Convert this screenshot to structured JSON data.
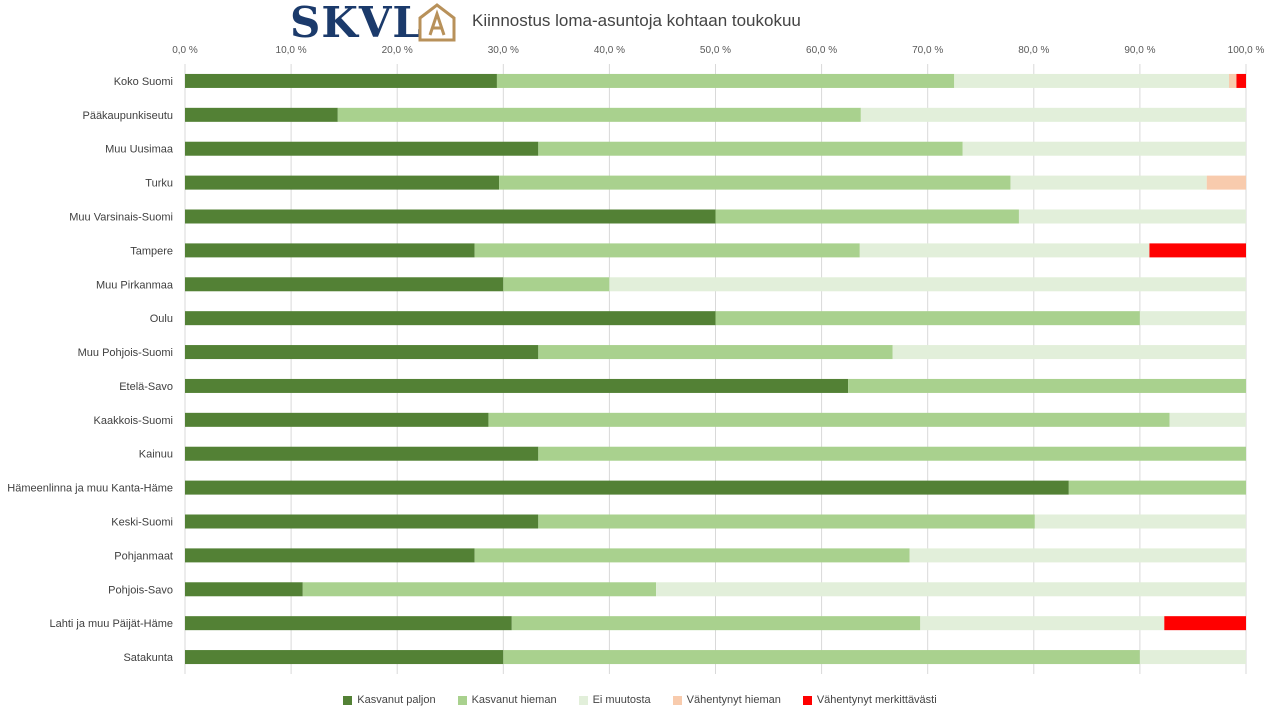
{
  "header": {
    "logo_text": "SKVL",
    "title": "Kiinnostus loma-asuntoja kohtaan toukokuu"
  },
  "colors": [
    "#538135",
    "#a9d18e",
    "#e2efda",
    "#f8cbad",
    "#ff0000"
  ],
  "chart_data": {
    "type": "bar",
    "orientation": "horizontal",
    "stacked": true,
    "title": "Kiinnostus loma-asuntoja kohtaan toukokuu",
    "xlim": [
      0,
      100
    ],
    "x_ticks": [
      "0,0 %",
      "10,0 %",
      "20,0 %",
      "30,0 %",
      "40,0 %",
      "50,0 %",
      "60,0 %",
      "70,0 %",
      "80,0 %",
      "90,0 %",
      "100,0 %"
    ],
    "x_axis_position": "top",
    "grid": "vertical",
    "legend_position": "bottom",
    "categories": [
      "Koko Suomi",
      "Pääkaupunkiseutu",
      "Muu Uusimaa",
      "Turku",
      "Muu Varsinais-Suomi",
      "Tampere",
      "Muu Pirkanmaa",
      "Oulu",
      "Muu Pohjois-Suomi",
      "Etelä-Savo",
      "Kaakkois-Suomi",
      "Kainuu",
      "Hämeenlinna ja muu Kanta-Häme",
      "Keski-Suomi",
      "Pohjanmaat",
      "Pohjois-Savo",
      "Lahti ja muu Päijät-Häme",
      "Satakunta"
    ],
    "series": [
      {
        "name": "Kasvanut paljon",
        "values": [
          29.4,
          14.4,
          33.3,
          29.6,
          50.0,
          27.3,
          30.0,
          50.0,
          33.3,
          62.5,
          28.6,
          33.3,
          83.3,
          33.3,
          27.3,
          11.1,
          30.8,
          30.0
        ]
      },
      {
        "name": "Kasvanut hieman",
        "values": [
          43.1,
          49.3,
          40.0,
          48.2,
          28.6,
          36.3,
          10.0,
          40.0,
          33.4,
          37.5,
          64.2,
          66.7,
          16.7,
          46.8,
          41.0,
          33.3,
          38.5,
          60.0
        ]
      },
      {
        "name": "Ei muutosta",
        "values": [
          25.9,
          36.3,
          26.7,
          18.5,
          21.4,
          27.3,
          60.0,
          10.0,
          33.3,
          0,
          7.2,
          0,
          0,
          19.9,
          31.7,
          55.6,
          23.0,
          10.0
        ]
      },
      {
        "name": "Vähentynyt hieman",
        "values": [
          0.7,
          0,
          0,
          3.7,
          0,
          0,
          0,
          0,
          0,
          0,
          0,
          0,
          0,
          0,
          0,
          0,
          0,
          0
        ]
      },
      {
        "name": "Vähentynyt merkittävästi",
        "values": [
          0.9,
          0,
          0,
          0,
          0,
          9.1,
          0,
          0,
          0,
          0,
          0,
          0,
          0,
          0,
          0,
          0,
          7.7,
          0
        ]
      }
    ]
  }
}
